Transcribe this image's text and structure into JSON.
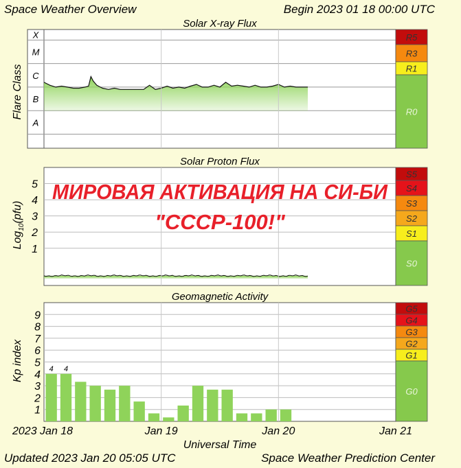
{
  "header": {
    "title": "Space Weather Overview",
    "begin": "Begin 2023 01 18 00:00 UTC"
  },
  "footer": {
    "updated": "Updated 2023 Jan 20 05:05 UTC",
    "center": "Space Weather Prediction Center"
  },
  "overlay": {
    "line1": "МИРОВАЯ АКТИВАЦИЯ НА СИ-БИ",
    "line2": "\"СССР-100!\""
  },
  "colors": {
    "background": "#fbfbd9",
    "plot_bg": "#ffffff",
    "data_green": "#8fd35a",
    "kp_bar": "#8fd35a",
    "scale_green": "#86c94c",
    "scale_yellow": "#f7ee1c",
    "scale_orange": "#f5890f",
    "scale_red": "#e5131a",
    "scale_darkred": "#c20c0c",
    "overlay_text": "#e8202a"
  },
  "chart_data": [
    {
      "type": "area",
      "title": "Solar X-ray Flux",
      "ylabel": "Flare Class",
      "y_scale": "log",
      "class_labels": [
        "A",
        "B",
        "C",
        "M",
        "X"
      ],
      "x_range_days": [
        0,
        3
      ],
      "x_ticks": [
        "2023 Jan 18",
        "Jan 19",
        "Jan 20",
        "Jan 21"
      ],
      "data_through_day": 2.25,
      "series": [
        {
          "x": [
            0.0,
            0.05,
            0.1,
            0.15,
            0.2,
            0.25,
            0.3,
            0.35,
            0.38,
            0.4,
            0.42,
            0.45,
            0.48,
            0.5,
            0.55,
            0.6,
            0.65,
            0.7,
            0.75,
            0.8,
            0.85,
            0.9,
            0.95,
            1.0,
            1.05,
            1.1,
            1.15,
            1.2,
            1.25,
            1.3,
            1.35,
            1.4,
            1.45,
            1.5,
            1.55,
            1.6,
            1.65,
            1.7,
            1.75,
            1.8,
            1.85,
            1.9,
            1.95,
            2.0,
            2.05,
            2.1,
            2.15,
            2.2,
            2.25
          ],
          "flux": [
            1.6e-06,
            1.2e-06,
            1e-06,
            1.1e-06,
            1e-06,
            9e-07,
            9e-07,
            1e-06,
            1.1e-06,
            2.8e-06,
            1.8e-06,
            1.2e-06,
            1e-06,
            9e-07,
            8e-07,
            9e-07,
            8e-07,
            8e-07,
            8e-07,
            8e-07,
            8e-07,
            1.2e-06,
            8e-07,
            9e-07,
            1.1e-06,
            9e-07,
            1e-06,
            9e-07,
            1.1e-06,
            1.3e-06,
            1e-06,
            1e-06,
            1.2e-06,
            1e-06,
            1.6e-06,
            1.1e-06,
            1.2e-06,
            1.1e-06,
            1e-06,
            1.2e-06,
            1e-06,
            1e-06,
            1.1e-06,
            1.3e-06,
            1e-06,
            1.1e-06,
            1e-06,
            1e-06,
            1e-06
          ]
        }
      ],
      "scale": [
        {
          "label": "R5",
          "color": "#c20c0c"
        },
        {
          "label": "R3",
          "color": "#f5890f"
        },
        {
          "label": "R1",
          "color": "#f7ee1c"
        },
        {
          "label": "R0",
          "color": "#86c94c"
        }
      ]
    },
    {
      "type": "area",
      "title": "Solar Proton Flux",
      "ylabel": "Log10(pfu)",
      "ylim": [
        -1.3,
        6
      ],
      "y_ticks": [
        1,
        2,
        3,
        4,
        5
      ],
      "data_through_day": 2.25,
      "series": [
        {
          "x": [
            0,
            2.25
          ],
          "values": [
            -0.7,
            -0.7
          ]
        }
      ],
      "scale": [
        {
          "label": "S5",
          "color": "#c20c0c"
        },
        {
          "label": "S4",
          "color": "#e5131a"
        },
        {
          "label": "S3",
          "color": "#f5890f"
        },
        {
          "label": "S2",
          "color": "#f5a81c"
        },
        {
          "label": "S1",
          "color": "#f7ee1c"
        },
        {
          "label": "S0",
          "color": "#86c94c"
        }
      ]
    },
    {
      "type": "bar",
      "title": "Geomagnetic Activity",
      "ylabel": "Kp index",
      "xlabel": "Universal Time",
      "ylim": [
        0,
        10
      ],
      "y_ticks": [
        1,
        2,
        3,
        4,
        5,
        6,
        7,
        8,
        9
      ],
      "values": [
        4,
        4,
        3.33,
        3,
        2.67,
        3,
        1.67,
        0.67,
        0.33,
        1.33,
        3,
        2.67,
        2.67,
        0.67,
        0.67,
        1,
        1
      ],
      "bar_labels": [
        "4",
        "4",
        "",
        "",
        "",
        "",
        "",
        "",
        "",
        "",
        "",
        "",
        "",
        "",
        "",
        "",
        ""
      ],
      "scale": [
        {
          "label": "G5",
          "color": "#c20c0c"
        },
        {
          "label": "G4",
          "color": "#e5131a"
        },
        {
          "label": "G3",
          "color": "#f5890f"
        },
        {
          "label": "G2",
          "color": "#f5a81c"
        },
        {
          "label": "G1",
          "color": "#f7ee1c"
        },
        {
          "label": "G0",
          "color": "#86c94c"
        }
      ]
    }
  ]
}
